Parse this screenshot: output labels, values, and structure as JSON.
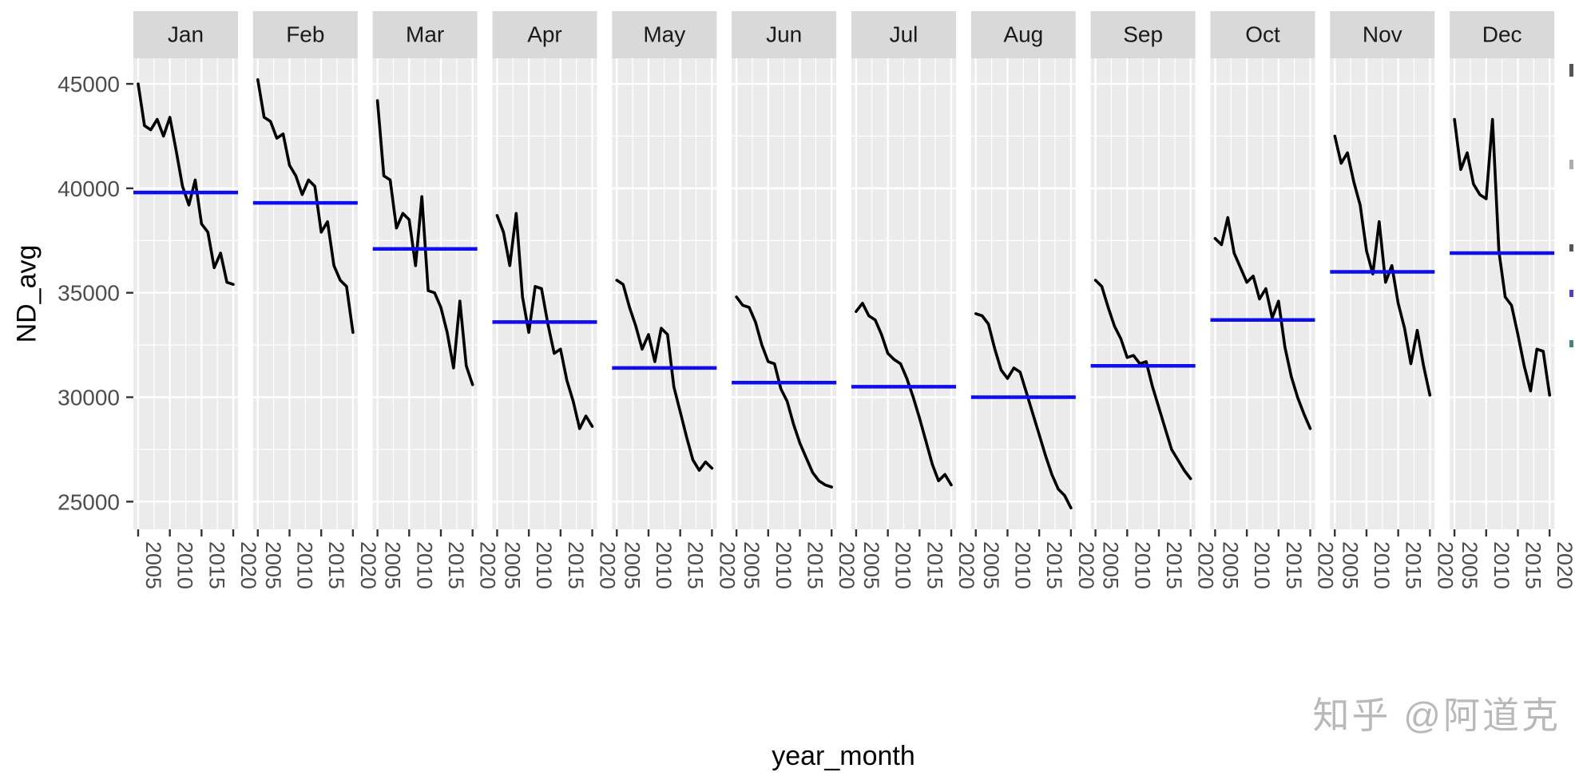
{
  "watermark": "知乎 @阿道克",
  "chart_data": {
    "type": "line",
    "title": "",
    "xlabel": "year_month",
    "ylabel": "ND_avg",
    "facet_variable": "month",
    "x": [
      2005,
      2006,
      2007,
      2008,
      2009,
      2010,
      2011,
      2012,
      2013,
      2014,
      2015,
      2016,
      2017,
      2018,
      2019,
      2020
    ],
    "x_ticks": [
      2005,
      2010,
      2015,
      2020
    ],
    "x_tick_labels": [
      "2005",
      "2010",
      "2015",
      "2020"
    ],
    "y_ticks": [
      45000,
      40000,
      35000,
      30000,
      25000
    ],
    "y_tick_labels": [
      "45000",
      "40000",
      "35000",
      "30000",
      "25000"
    ],
    "ylim": [
      23675,
      46225
    ],
    "grid": true,
    "legend_position": "none",
    "series_color": "#000000",
    "mean_line_color": "#0d0dee",
    "panel_background": "#ebebeb",
    "strip_background": "#d9d9d9",
    "gridline_color": "#ffffff",
    "axis_text_color": "#4d4d4d",
    "facets": [
      {
        "label": "Jan",
        "mean": 39800,
        "values": [
          45000,
          43000,
          42800,
          43300,
          42500,
          43400,
          41800,
          40100,
          39200,
          40400,
          38300,
          37900,
          36200,
          36900,
          35500,
          35400
        ]
      },
      {
        "label": "Feb",
        "mean": 39300,
        "values": [
          45200,
          43400,
          43200,
          42400,
          42600,
          41100,
          40600,
          39700,
          40400,
          40100,
          37900,
          38400,
          36300,
          35600,
          35300,
          33100
        ]
      },
      {
        "label": "Mar",
        "mean": 37100,
        "values": [
          44200,
          40600,
          40400,
          38100,
          38800,
          38500,
          36300,
          39600,
          35100,
          35000,
          34300,
          33100,
          31400,
          34600,
          31500,
          30600
        ]
      },
      {
        "label": "Apr",
        "mean": 33600,
        "values": [
          38700,
          37900,
          36300,
          38800,
          34800,
          33100,
          35300,
          35200,
          33500,
          32100,
          32300,
          30800,
          29800,
          28500,
          29100,
          28600
        ]
      },
      {
        "label": "May",
        "mean": 31400,
        "values": [
          35600,
          35400,
          34300,
          33400,
          32300,
          33000,
          31700,
          33300,
          33000,
          30500,
          29300,
          28100,
          27000,
          26500,
          26900,
          26600
        ]
      },
      {
        "label": "Jun",
        "mean": 30700,
        "values": [
          34800,
          34400,
          34300,
          33600,
          32500,
          31700,
          31600,
          30400,
          29800,
          28700,
          27800,
          27100,
          26400,
          26000,
          25800,
          25700
        ]
      },
      {
        "label": "Jul",
        "mean": 30500,
        "values": [
          34100,
          34500,
          33900,
          33700,
          33000,
          32100,
          31800,
          31600,
          30900,
          30000,
          29000,
          27900,
          26800,
          26000,
          26300,
          25800
        ]
      },
      {
        "label": "Aug",
        "mean": 30000,
        "values": [
          34000,
          33900,
          33500,
          32300,
          31300,
          30900,
          31400,
          31200,
          30200,
          29200,
          28200,
          27200,
          26300,
          25600,
          25300,
          24700
        ]
      },
      {
        "label": "Sep",
        "mean": 31500,
        "values": [
          35600,
          35300,
          34300,
          33400,
          32800,
          31900,
          32000,
          31600,
          31700,
          30500,
          29500,
          28500,
          27500,
          27000,
          26500,
          26100
        ]
      },
      {
        "label": "Oct",
        "mean": 33700,
        "values": [
          37600,
          37300,
          38600,
          36900,
          36200,
          35500,
          35800,
          34700,
          35200,
          33800,
          34600,
          32400,
          31000,
          30000,
          29200,
          28500
        ]
      },
      {
        "label": "Nov",
        "mean": 36000,
        "values": [
          42500,
          41200,
          41700,
          40300,
          39200,
          37000,
          35900,
          38400,
          35500,
          36300,
          34500,
          33300,
          31600,
          33200,
          31500,
          30100
        ]
      },
      {
        "label": "Dec",
        "mean": 36900,
        "values": [
          43300,
          40900,
          41700,
          40200,
          39700,
          39500,
          43300,
          37000,
          34800,
          34400,
          33000,
          31500,
          30300,
          32300,
          32200,
          30100
        ]
      }
    ]
  }
}
